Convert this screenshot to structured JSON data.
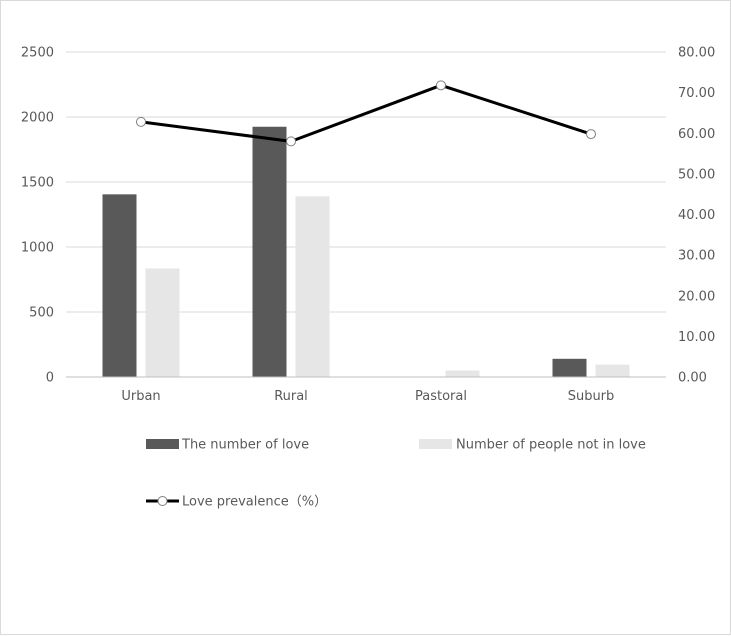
{
  "chart_data": {
    "type": "bar",
    "categories": [
      "Urban",
      "Rural",
      "Pastoral",
      "Suburb"
    ],
    "series": [
      {
        "name": "The number of love",
        "kind": "bar",
        "axis": "left",
        "color": "#595959",
        "values": [
          1405,
          1925,
          0,
          140
        ]
      },
      {
        "name": "Number of people not in love",
        "kind": "bar",
        "axis": "left",
        "color": "#e7e6e6",
        "values": [
          835,
          1390,
          50,
          95
        ]
      },
      {
        "name": "Love prevalence（%）",
        "kind": "line",
        "axis": "right",
        "color": "#000000",
        "values": [
          62.8,
          58.0,
          71.8,
          59.8
        ]
      }
    ],
    "y_left": {
      "min": 0,
      "max": 2500,
      "step": 500,
      "ticks": [
        "0",
        "500",
        "1000",
        "1500",
        "2000",
        "2500"
      ]
    },
    "y_right": {
      "min": 0,
      "max": 80,
      "step": 10,
      "ticks": [
        "0.00",
        "10.00",
        "20.00",
        "30.00",
        "40.00",
        "50.00",
        "60.00",
        "70.00",
        "80.00"
      ]
    },
    "grid": true,
    "legend_position": "bottom",
    "title": "",
    "xlabel": "",
    "ylabel": ""
  }
}
